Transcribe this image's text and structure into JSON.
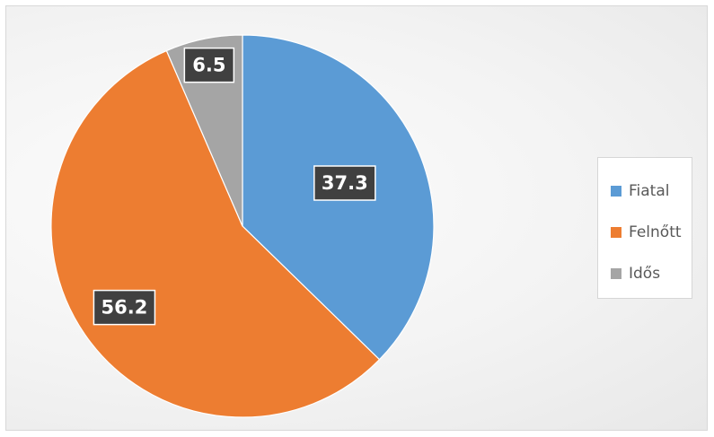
{
  "chart_data": {
    "type": "pie",
    "title": "",
    "categories": [
      "Fiatal",
      "Felnőtt",
      "Idős"
    ],
    "values": [
      37.3,
      56.2,
      6.5
    ],
    "value_labels": [
      "37.3",
      "56.2",
      "6.5"
    ],
    "colors": [
      "#5b9bd5",
      "#ed7d31",
      "#a5a5a5"
    ],
    "start_angle_deg": 0,
    "direction": "clockwise",
    "legend_position": "right"
  },
  "legend": {
    "items": [
      {
        "label": "Fiatal",
        "color": "#5b9bd5"
      },
      {
        "label": "Felnőtt",
        "color": "#ed7d31"
      },
      {
        "label": "Idős",
        "color": "#a5a5a5"
      }
    ]
  }
}
